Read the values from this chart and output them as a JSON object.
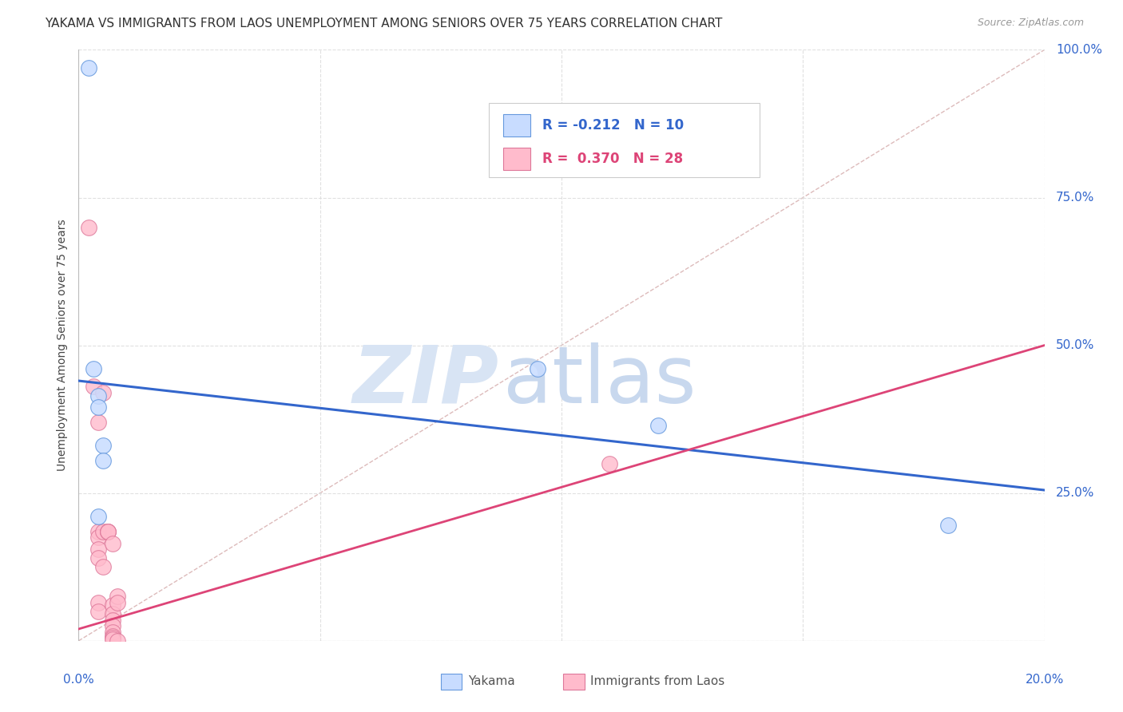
{
  "title": "YAKAMA VS IMMIGRANTS FROM LAOS UNEMPLOYMENT AMONG SENIORS OVER 75 YEARS CORRELATION CHART",
  "source": "Source: ZipAtlas.com",
  "ylabel": "Unemployment Among Seniors over 75 years",
  "xlim": [
    0.0,
    0.2
  ],
  "ylim": [
    0.0,
    1.0
  ],
  "xticks": [
    0.0,
    0.05,
    0.1,
    0.15,
    0.2
  ],
  "yticks": [
    0.0,
    0.25,
    0.5,
    0.75,
    1.0
  ],
  "ytick_labels_right": [
    "",
    "25.0%",
    "50.0%",
    "75.0%",
    "100.0%"
  ],
  "legend_entry1_label": "R = -0.212   N = 10",
  "legend_entry2_label": "R =  0.370   N = 28",
  "legend_label_yakama": "Yakama",
  "legend_label_laos": "Immigrants from Laos",
  "yakama_points": [
    [
      0.002,
      0.97
    ],
    [
      0.003,
      0.46
    ],
    [
      0.004,
      0.415
    ],
    [
      0.004,
      0.395
    ],
    [
      0.004,
      0.21
    ],
    [
      0.005,
      0.33
    ],
    [
      0.005,
      0.305
    ],
    [
      0.095,
      0.46
    ],
    [
      0.12,
      0.365
    ],
    [
      0.18,
      0.195
    ]
  ],
  "laos_points": [
    [
      0.002,
      0.7
    ],
    [
      0.003,
      0.43
    ],
    [
      0.004,
      0.37
    ],
    [
      0.004,
      0.185
    ],
    [
      0.004,
      0.175
    ],
    [
      0.004,
      0.155
    ],
    [
      0.004,
      0.14
    ],
    [
      0.004,
      0.065
    ],
    [
      0.004,
      0.05
    ],
    [
      0.005,
      0.42
    ],
    [
      0.005,
      0.185
    ],
    [
      0.005,
      0.125
    ],
    [
      0.006,
      0.185
    ],
    [
      0.006,
      0.185
    ],
    [
      0.006,
      0.185
    ],
    [
      0.007,
      0.165
    ],
    [
      0.007,
      0.06
    ],
    [
      0.007,
      0.045
    ],
    [
      0.007,
      0.035
    ],
    [
      0.007,
      0.025
    ],
    [
      0.007,
      0.015
    ],
    [
      0.007,
      0.008
    ],
    [
      0.007,
      0.005
    ],
    [
      0.007,
      0.003
    ],
    [
      0.008,
      0.075
    ],
    [
      0.008,
      0.065
    ],
    [
      0.008,
      0.0
    ],
    [
      0.11,
      0.3
    ]
  ],
  "yakama_fill_color": "#c8dcff",
  "yakama_edge_color": "#6699dd",
  "laos_fill_color": "#ffbbcc",
  "laos_edge_color": "#dd7799",
  "yakama_line_color": "#3366cc",
  "laos_line_color": "#dd4477",
  "diagonal_color": "#ddbbbb",
  "watermark_zip_color": "#d8e4f4",
  "watermark_atlas_color": "#c8d8ee",
  "background_color": "#ffffff",
  "grid_color": "#dddddd",
  "title_fontsize": 11,
  "axis_label_fontsize": 10,
  "tick_fontsize": 11,
  "point_size": 200,
  "yakama_trend_x0": 0.0,
  "yakama_trend_y0": 0.44,
  "yakama_trend_x1": 0.2,
  "yakama_trend_y1": 0.255,
  "laos_trend_x0": 0.0,
  "laos_trend_y0": 0.02,
  "laos_trend_x1": 0.2,
  "laos_trend_y1": 0.5
}
